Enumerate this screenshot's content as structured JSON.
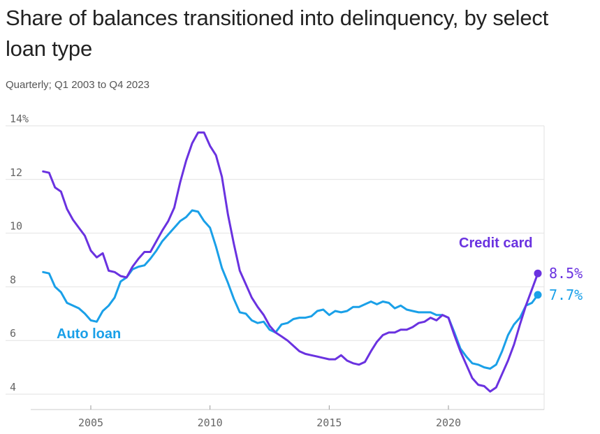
{
  "title": "Share of balances transitioned into delinquency, by select loan type",
  "subtitle": "Quarterly; Q1 2003 to Q4 2023",
  "colors": {
    "credit_card": "#6a32e0",
    "auto_loan": "#1aa0e8",
    "grid": "#e2e2e2",
    "axis": "#999999"
  },
  "chart_data": {
    "type": "line",
    "title": "Share of balances transitioned into delinquency, by select loan type",
    "subtitle": "Quarterly; Q1 2003 to Q4 2023",
    "xlabel": "",
    "ylabel": "",
    "xlim": [
      2003,
      2023.9
    ],
    "ylim": [
      4,
      14
    ],
    "y_ticks": [
      4,
      6,
      8,
      10,
      12,
      14
    ],
    "y_tick_labels": [
      "4",
      "6",
      "8",
      "10",
      "12",
      "14%"
    ],
    "x_ticks": [
      2005,
      2010,
      2015,
      2020
    ],
    "x_tick_labels": [
      "2005",
      "2010",
      "2015",
      "2020"
    ],
    "grid": true,
    "series": [
      {
        "name": "Credit card",
        "label": "Credit card",
        "end_label": "8.5%",
        "color": "#6a32e0",
        "points": [
          [
            2003.0,
            12.3
          ],
          [
            2003.25,
            12.25
          ],
          [
            2003.5,
            11.7
          ],
          [
            2003.75,
            11.55
          ],
          [
            2004.0,
            10.9
          ],
          [
            2004.25,
            10.5
          ],
          [
            2004.5,
            10.2
          ],
          [
            2004.75,
            9.9
          ],
          [
            2005.0,
            9.35
          ],
          [
            2005.25,
            9.1
          ],
          [
            2005.5,
            9.25
          ],
          [
            2005.75,
            8.6
          ],
          [
            2006.0,
            8.55
          ],
          [
            2006.25,
            8.4
          ],
          [
            2006.5,
            8.35
          ],
          [
            2006.75,
            8.75
          ],
          [
            2007.0,
            9.05
          ],
          [
            2007.25,
            9.3
          ],
          [
            2007.5,
            9.3
          ],
          [
            2007.75,
            9.7
          ],
          [
            2008.0,
            10.1
          ],
          [
            2008.25,
            10.45
          ],
          [
            2008.5,
            10.95
          ],
          [
            2008.75,
            11.9
          ],
          [
            2009.0,
            12.7
          ],
          [
            2009.25,
            13.35
          ],
          [
            2009.5,
            13.75
          ],
          [
            2009.75,
            13.75
          ],
          [
            2010.0,
            13.25
          ],
          [
            2010.25,
            12.9
          ],
          [
            2010.5,
            12.1
          ],
          [
            2010.75,
            10.7
          ],
          [
            2011.0,
            9.6
          ],
          [
            2011.25,
            8.6
          ],
          [
            2011.5,
            8.1
          ],
          [
            2011.75,
            7.6
          ],
          [
            2012.0,
            7.25
          ],
          [
            2012.25,
            6.95
          ],
          [
            2012.5,
            6.55
          ],
          [
            2012.75,
            6.3
          ],
          [
            2013.0,
            6.15
          ],
          [
            2013.25,
            6.0
          ],
          [
            2013.5,
            5.8
          ],
          [
            2013.75,
            5.6
          ],
          [
            2014.0,
            5.5
          ],
          [
            2014.25,
            5.45
          ],
          [
            2014.5,
            5.4
          ],
          [
            2014.75,
            5.35
          ],
          [
            2015.0,
            5.3
          ],
          [
            2015.25,
            5.3
          ],
          [
            2015.5,
            5.45
          ],
          [
            2015.75,
            5.25
          ],
          [
            2016.0,
            5.15
          ],
          [
            2016.25,
            5.1
          ],
          [
            2016.5,
            5.2
          ],
          [
            2016.75,
            5.6
          ],
          [
            2017.0,
            5.95
          ],
          [
            2017.25,
            6.2
          ],
          [
            2017.5,
            6.3
          ],
          [
            2017.75,
            6.3
          ],
          [
            2018.0,
            6.4
          ],
          [
            2018.25,
            6.4
          ],
          [
            2018.5,
            6.5
          ],
          [
            2018.75,
            6.65
          ],
          [
            2019.0,
            6.7
          ],
          [
            2019.25,
            6.85
          ],
          [
            2019.5,
            6.75
          ],
          [
            2019.75,
            6.95
          ],
          [
            2020.0,
            6.85
          ],
          [
            2020.25,
            6.2
          ],
          [
            2020.5,
            5.6
          ],
          [
            2020.75,
            5.1
          ],
          [
            2021.0,
            4.6
          ],
          [
            2021.25,
            4.35
          ],
          [
            2021.5,
            4.3
          ],
          [
            2021.75,
            4.1
          ],
          [
            2022.0,
            4.25
          ],
          [
            2022.25,
            4.75
          ],
          [
            2022.5,
            5.25
          ],
          [
            2022.75,
            5.85
          ],
          [
            2023.0,
            6.6
          ],
          [
            2023.25,
            7.3
          ],
          [
            2023.5,
            7.9
          ],
          [
            2023.75,
            8.5
          ]
        ]
      },
      {
        "name": "Auto loan",
        "label": "Auto loan",
        "end_label": "7.7%",
        "color": "#1aa0e8",
        "points": [
          [
            2003.0,
            8.55
          ],
          [
            2003.25,
            8.5
          ],
          [
            2003.5,
            8.0
          ],
          [
            2003.75,
            7.8
          ],
          [
            2004.0,
            7.4
          ],
          [
            2004.25,
            7.3
          ],
          [
            2004.5,
            7.2
          ],
          [
            2004.75,
            7.0
          ],
          [
            2005.0,
            6.75
          ],
          [
            2005.25,
            6.7
          ],
          [
            2005.5,
            7.1
          ],
          [
            2005.75,
            7.3
          ],
          [
            2006.0,
            7.6
          ],
          [
            2006.25,
            8.2
          ],
          [
            2006.5,
            8.35
          ],
          [
            2006.75,
            8.65
          ],
          [
            2007.0,
            8.75
          ],
          [
            2007.25,
            8.8
          ],
          [
            2007.5,
            9.05
          ],
          [
            2007.75,
            9.35
          ],
          [
            2008.0,
            9.7
          ],
          [
            2008.25,
            9.95
          ],
          [
            2008.5,
            10.2
          ],
          [
            2008.75,
            10.45
          ],
          [
            2009.0,
            10.6
          ],
          [
            2009.25,
            10.85
          ],
          [
            2009.5,
            10.8
          ],
          [
            2009.75,
            10.45
          ],
          [
            2010.0,
            10.2
          ],
          [
            2010.25,
            9.5
          ],
          [
            2010.5,
            8.7
          ],
          [
            2010.75,
            8.15
          ],
          [
            2011.0,
            7.55
          ],
          [
            2011.25,
            7.05
          ],
          [
            2011.5,
            7.0
          ],
          [
            2011.75,
            6.75
          ],
          [
            2012.0,
            6.65
          ],
          [
            2012.25,
            6.7
          ],
          [
            2012.5,
            6.4
          ],
          [
            2012.75,
            6.3
          ],
          [
            2013.0,
            6.6
          ],
          [
            2013.25,
            6.65
          ],
          [
            2013.5,
            6.8
          ],
          [
            2013.75,
            6.85
          ],
          [
            2014.0,
            6.85
          ],
          [
            2014.25,
            6.9
          ],
          [
            2014.5,
            7.1
          ],
          [
            2014.75,
            7.15
          ],
          [
            2015.0,
            6.95
          ],
          [
            2015.25,
            7.1
          ],
          [
            2015.5,
            7.05
          ],
          [
            2015.75,
            7.1
          ],
          [
            2016.0,
            7.25
          ],
          [
            2016.25,
            7.25
          ],
          [
            2016.5,
            7.35
          ],
          [
            2016.75,
            7.45
          ],
          [
            2017.0,
            7.35
          ],
          [
            2017.25,
            7.45
          ],
          [
            2017.5,
            7.4
          ],
          [
            2017.75,
            7.2
          ],
          [
            2018.0,
            7.3
          ],
          [
            2018.25,
            7.15
          ],
          [
            2018.5,
            7.1
          ],
          [
            2018.75,
            7.05
          ],
          [
            2019.0,
            7.05
          ],
          [
            2019.25,
            7.05
          ],
          [
            2019.5,
            6.95
          ],
          [
            2019.75,
            6.95
          ],
          [
            2020.0,
            6.85
          ],
          [
            2020.25,
            6.3
          ],
          [
            2020.5,
            5.7
          ],
          [
            2020.75,
            5.4
          ],
          [
            2021.0,
            5.15
          ],
          [
            2021.25,
            5.1
          ],
          [
            2021.5,
            5.0
          ],
          [
            2021.75,
            4.95
          ],
          [
            2022.0,
            5.1
          ],
          [
            2022.25,
            5.6
          ],
          [
            2022.5,
            6.2
          ],
          [
            2022.75,
            6.6
          ],
          [
            2023.0,
            6.85
          ],
          [
            2023.25,
            7.3
          ],
          [
            2023.5,
            7.4
          ],
          [
            2023.75,
            7.7
          ]
        ]
      }
    ]
  }
}
